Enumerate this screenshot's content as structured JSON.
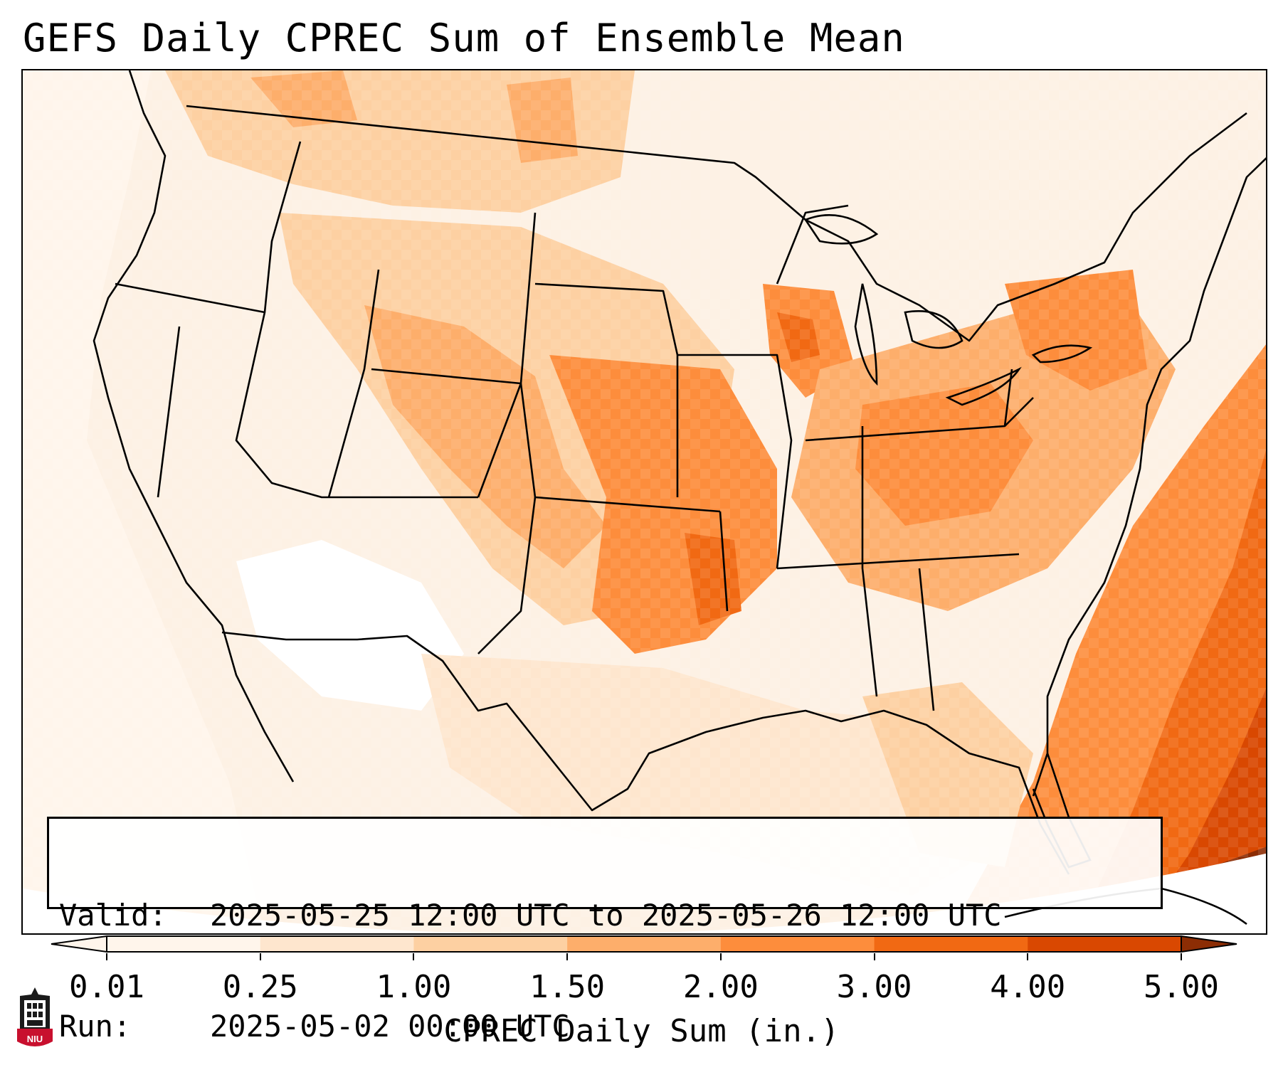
{
  "title": "GEFS Daily CPREC Sum of Ensemble Mean",
  "info": {
    "valid_label": "Valid:",
    "valid_value": "2025-05-25 12:00 UTC to 2025-05-26 12:00 UTC",
    "run_label": "Run:",
    "run_value": "2025-05-02 00:00 UTC"
  },
  "colorbar": {
    "label": "CPREC Daily Sum (in.)",
    "ticks": [
      "0.01",
      "0.25",
      "1.00",
      "1.50",
      "2.00",
      "3.00",
      "4.00",
      "5.00"
    ],
    "colors": [
      "#fff5eb",
      "#fee6ce",
      "#fdd0a2",
      "#fdae6b",
      "#fd8d3c",
      "#f16913",
      "#d94801"
    ],
    "under_color": "#fff5eb",
    "over_color": "#8c2d04"
  },
  "logo": {
    "text": "NIU",
    "icon": "niu-tower-logo-icon"
  }
}
